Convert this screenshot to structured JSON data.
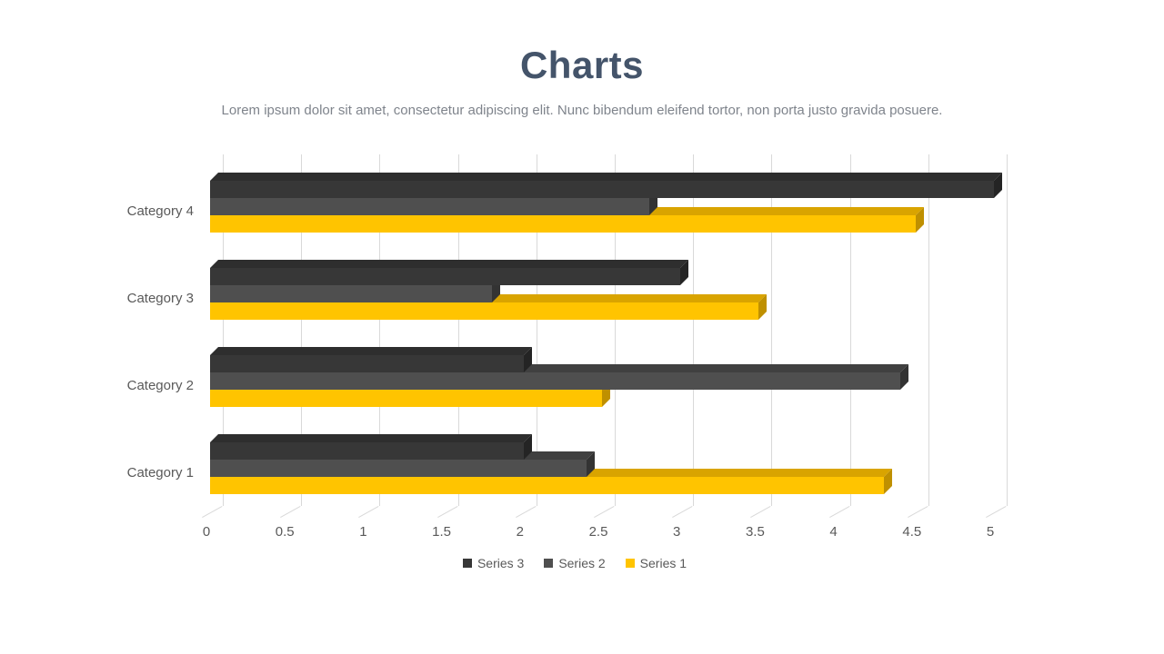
{
  "slide": {
    "title": "Charts",
    "subtitle": "Lorem ipsum dolor sit amet, consectetur adipiscing elit. Nunc bibendum eleifend tortor, non porta justo gravida posuere."
  },
  "colors": {
    "background": "#FFFFFF",
    "title": "#44546A",
    "subtitle": "#7F848C",
    "axis_text": "#595959",
    "gridline": "#D9D9D9"
  },
  "chart_data": {
    "type": "bar",
    "orientation": "horizontal",
    "style": "3d",
    "title": "",
    "xlabel": "",
    "ylabel": "",
    "grid": true,
    "xlim": [
      0,
      5
    ],
    "tick_step": 0.5,
    "tick_labels": [
      "0",
      "0.5",
      "1",
      "1.5",
      "2",
      "2.5",
      "3",
      "3.5",
      "4",
      "4.5",
      "5"
    ],
    "categories_top_to_bottom": [
      "Category 4",
      "Category 3",
      "Category 2",
      "Category 1"
    ],
    "series": [
      {
        "name": "Series 3",
        "color": "#373737",
        "color_top": "#2E2E2E",
        "color_side": "#242424",
        "values": [
          5.0,
          3.0,
          2.0,
          2.0
        ]
      },
      {
        "name": "Series 2",
        "color": "#4F4F4F",
        "color_top": "#404040",
        "color_side": "#333333",
        "values": [
          2.8,
          1.8,
          4.4,
          2.4
        ]
      },
      {
        "name": "Series 1",
        "color": "#FFC400",
        "color_top": "#D9A400",
        "color_side": "#BF9000",
        "values": [
          4.5,
          3.5,
          2.5,
          4.3
        ]
      }
    ],
    "legend": {
      "position": "bottom",
      "items": [
        "Series 3",
        "Series 2",
        "Series 1"
      ]
    }
  }
}
